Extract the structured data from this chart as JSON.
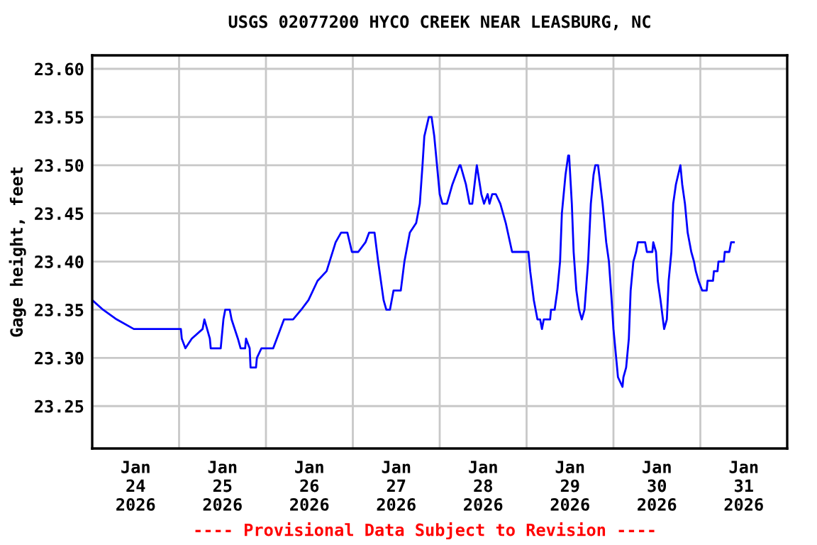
{
  "chart_data": {
    "type": "line",
    "title": "USGS 02077200 HYCO CREEK NEAR LEASBURG, NC",
    "ylabel": "Gage height, feet",
    "annotations": [
      "---- Provisional Data Subject to Revision ----"
    ],
    "grid": true,
    "xlim": [
      "2026-01-24T00:00",
      "2026-02-01T00:00"
    ],
    "xticks": [
      {
        "value": "2026-01-24T00:00",
        "label": null
      },
      {
        "value": "2026-01-24T12:00",
        "label": "Jan\n24\n2026"
      },
      {
        "value": "2026-01-25T00:00",
        "label": null
      },
      {
        "value": "2026-01-25T12:00",
        "label": "Jan\n25\n2026"
      },
      {
        "value": "2026-01-26T00:00",
        "label": null
      },
      {
        "value": "2026-01-26T12:00",
        "label": "Jan\n26\n2026"
      },
      {
        "value": "2026-01-27T00:00",
        "label": null
      },
      {
        "value": "2026-01-27T12:00",
        "label": "Jan\n27\n2026"
      },
      {
        "value": "2026-01-28T00:00",
        "label": null
      },
      {
        "value": "2026-01-28T12:00",
        "label": "Jan\n28\n2026"
      },
      {
        "value": "2026-01-29T00:00",
        "label": null
      },
      {
        "value": "2026-01-29T12:00",
        "label": "Jan\n29\n2026"
      },
      {
        "value": "2026-01-30T00:00",
        "label": null
      },
      {
        "value": "2026-01-30T12:00",
        "label": "Jan\n30\n2026"
      },
      {
        "value": "2026-01-31T00:00",
        "label": null
      },
      {
        "value": "2026-01-31T12:00",
        "label": "Jan\n31\n2026"
      },
      {
        "value": "2026-02-01T00:00",
        "label": null
      }
    ],
    "ylim": [
      23.206,
      23.614
    ],
    "yticks": [
      {
        "value": 23.25,
        "label": "23.25"
      },
      {
        "value": 23.3,
        "label": "23.30"
      },
      {
        "value": 23.35,
        "label": "23.35"
      },
      {
        "value": 23.4,
        "label": "23.40"
      },
      {
        "value": 23.45,
        "label": "23.45"
      },
      {
        "value": 23.5,
        "label": "23.50"
      },
      {
        "value": 23.55,
        "label": "23.55"
      },
      {
        "value": 23.6,
        "label": "23.60"
      }
    ],
    "series": [
      {
        "color": "#0000ff",
        "x": [
          "2026-01-24T00:00",
          "2026-01-24T03:00",
          "2026-01-24T06:45",
          "2026-01-24T11:30",
          "2026-01-25T00:30",
          "2026-01-25T00:45",
          "2026-01-25T01:45",
          "2026-01-25T03:30",
          "2026-01-25T06:30",
          "2026-01-25T07:00",
          "2026-01-25T08:30",
          "2026-01-25T08:45",
          "2026-01-25T11:30",
          "2026-01-25T12:15",
          "2026-01-25T12:45",
          "2026-01-25T14:00",
          "2026-01-25T14:30",
          "2026-01-25T16:15",
          "2026-01-25T17:00",
          "2026-01-25T18:15",
          "2026-01-25T18:30",
          "2026-01-25T19:30",
          "2026-01-25T19:45",
          "2026-01-25T21:15",
          "2026-01-25T21:30",
          "2026-01-25T22:45",
          "2026-01-26T02:00",
          "2026-01-26T03:00",
          "2026-01-26T05:00",
          "2026-01-26T07:30",
          "2026-01-26T09:45",
          "2026-01-26T11:45",
          "2026-01-26T14:15",
          "2026-01-26T16:45",
          "2026-01-26T19:15",
          "2026-01-26T20:45",
          "2026-01-26T22:30",
          "2026-01-26T23:45",
          "2026-01-27T01:30",
          "2026-01-27T03:30",
          "2026-01-27T04:30",
          "2026-01-27T06:00",
          "2026-01-27T07:00",
          "2026-01-27T08:30",
          "2026-01-27T09:15",
          "2026-01-27T10:15",
          "2026-01-27T11:15",
          "2026-01-27T13:15",
          "2026-01-27T14:15",
          "2026-01-27T15:45",
          "2026-01-27T17:30",
          "2026-01-27T18:30",
          "2026-01-27T19:15",
          "2026-01-27T19:45",
          "2026-01-27T21:00",
          "2026-01-27T21:45",
          "2026-01-27T22:30",
          "2026-01-27T23:15",
          "2026-01-28T00:00",
          "2026-01-28T00:45",
          "2026-01-28T02:00",
          "2026-01-28T03:30",
          "2026-01-28T05:30",
          "2026-01-28T05:45",
          "2026-01-28T07:15",
          "2026-01-28T08:15",
          "2026-01-28T09:00",
          "2026-01-28T10:15",
          "2026-01-28T11:30",
          "2026-01-28T12:15",
          "2026-01-28T13:15",
          "2026-01-28T13:45",
          "2026-01-28T14:30",
          "2026-01-28T15:30",
          "2026-01-28T16:45",
          "2026-01-28T18:15",
          "2026-01-28T20:00",
          "2026-01-28T21:30",
          "2026-01-29T00:30",
          "2026-01-29T01:00",
          "2026-01-29T02:00",
          "2026-01-29T02:30",
          "2026-01-29T03:00",
          "2026-01-29T03:45",
          "2026-01-29T04:15",
          "2026-01-29T04:45",
          "2026-01-29T06:30",
          "2026-01-29T06:45",
          "2026-01-29T07:45",
          "2026-01-29T08:30",
          "2026-01-29T09:15",
          "2026-01-29T09:45",
          "2026-01-29T10:45",
          "2026-01-29T11:30",
          "2026-01-29T11:45",
          "2026-01-29T12:30",
          "2026-01-29T13:00",
          "2026-01-29T13:45",
          "2026-01-29T14:30",
          "2026-01-29T15:15",
          "2026-01-29T16:00",
          "2026-01-29T17:00",
          "2026-01-29T17:45",
          "2026-01-29T18:30",
          "2026-01-29T19:00",
          "2026-01-29T19:45",
          "2026-01-29T21:00",
          "2026-01-29T22:00",
          "2026-01-29T22:45",
          "2026-01-29T23:30",
          "2026-01-30T00:00",
          "2026-01-30T00:45",
          "2026-01-30T01:15",
          "2026-01-30T02:30",
          "2026-01-30T02:45",
          "2026-01-30T03:30",
          "2026-01-30T04:15",
          "2026-01-30T04:45",
          "2026-01-30T05:30",
          "2026-01-30T06:15",
          "2026-01-30T06:45",
          "2026-01-30T08:45",
          "2026-01-30T09:15",
          "2026-01-30T10:45",
          "2026-01-30T11:00",
          "2026-01-30T11:45",
          "2026-01-30T12:15",
          "2026-01-30T13:00",
          "2026-01-30T14:00",
          "2026-01-30T14:45",
          "2026-01-30T15:15",
          "2026-01-30T16:00",
          "2026-01-30T16:30",
          "2026-01-30T17:15",
          "2026-01-30T18:30",
          "2026-01-30T19:00",
          "2026-01-30T19:45",
          "2026-01-30T20:30",
          "2026-01-30T21:30",
          "2026-01-30T22:15",
          "2026-01-30T22:45",
          "2026-01-30T23:30",
          "2026-01-31T00:30",
          "2026-01-31T01:45",
          "2026-01-31T02:00",
          "2026-01-31T03:30",
          "2026-01-31T03:45",
          "2026-01-31T04:45",
          "2026-01-31T05:00",
          "2026-01-31T06:30",
          "2026-01-31T06:45",
          "2026-01-31T08:00",
          "2026-01-31T08:30",
          "2026-01-31T09:15"
        ],
        "values": [
          23.36,
          23.35,
          23.34,
          23.33,
          23.33,
          23.32,
          23.31,
          23.32,
          23.33,
          23.34,
          23.32,
          23.31,
          23.31,
          23.34,
          23.35,
          23.35,
          23.34,
          23.32,
          23.31,
          23.31,
          23.32,
          23.31,
          23.29,
          23.29,
          23.3,
          23.31,
          23.31,
          23.32,
          23.34,
          23.34,
          23.35,
          23.36,
          23.38,
          23.39,
          23.42,
          23.43,
          23.43,
          23.41,
          23.41,
          23.42,
          23.43,
          23.43,
          23.4,
          23.36,
          23.35,
          23.35,
          23.37,
          23.37,
          23.4,
          23.43,
          23.44,
          23.46,
          23.5,
          23.53,
          23.55,
          23.55,
          23.53,
          23.5,
          23.47,
          23.46,
          23.46,
          23.48,
          23.5,
          23.5,
          23.48,
          23.46,
          23.46,
          23.5,
          23.47,
          23.46,
          23.47,
          23.46,
          23.47,
          23.47,
          23.46,
          23.44,
          23.41,
          23.41,
          23.41,
          23.39,
          23.36,
          23.35,
          23.34,
          23.34,
          23.33,
          23.34,
          23.34,
          23.35,
          23.35,
          23.37,
          23.4,
          23.45,
          23.49,
          23.51,
          23.51,
          23.46,
          23.41,
          23.37,
          23.35,
          23.34,
          23.35,
          23.4,
          23.46,
          23.49,
          23.5,
          23.5,
          23.46,
          23.42,
          23.4,
          23.36,
          23.33,
          23.3,
          23.28,
          23.27,
          23.28,
          23.29,
          23.32,
          23.37,
          23.4,
          23.41,
          23.42,
          23.42,
          23.41,
          23.41,
          23.42,
          23.41,
          23.38,
          23.36,
          23.33,
          23.34,
          23.38,
          23.41,
          23.46,
          23.48,
          23.5,
          23.48,
          23.46,
          23.43,
          23.41,
          23.4,
          23.39,
          23.38,
          23.37,
          23.37,
          23.38,
          23.38,
          23.39,
          23.39,
          23.4,
          23.4,
          23.41,
          23.41,
          23.42,
          23.42
        ]
      }
    ]
  }
}
